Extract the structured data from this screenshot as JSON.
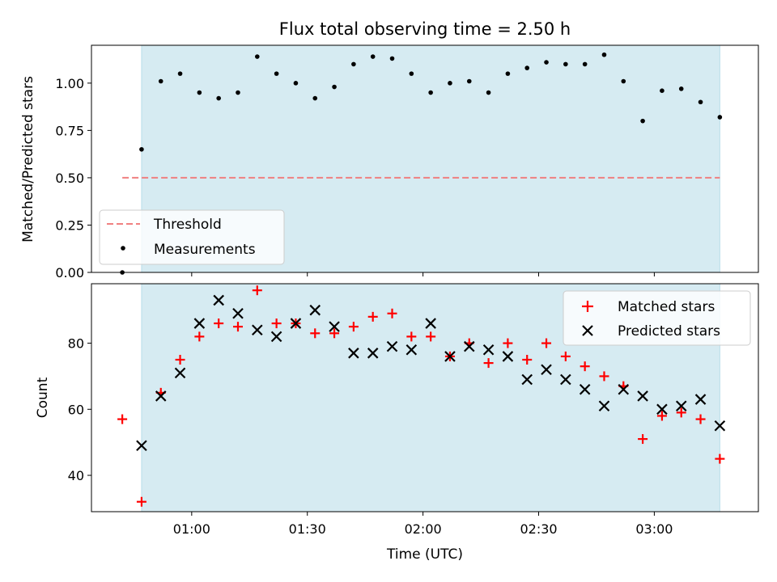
{
  "chart_data": [
    {
      "type": "scatter",
      "title": "Flux total observing time = 2.50 h",
      "xlabel": "",
      "ylabel": "Matched/Predicted stars",
      "xlim": [
        "00:34",
        "03:27"
      ],
      "ylim": [
        0,
        1.2
      ],
      "yticks": [
        0.0,
        0.25,
        0.5,
        0.75,
        1.0
      ],
      "ytick_labels": [
        "0.00",
        "0.25",
        "0.50",
        "0.75",
        "1.00"
      ],
      "shaded_span": [
        "00:47",
        "03:17"
      ],
      "legend_position": "lower-left",
      "grid": false,
      "threshold": {
        "name": "Threshold",
        "value": 0.5,
        "x_range": [
          "00:42",
          "03:17"
        ],
        "color": "#f08080",
        "style": "dashed"
      },
      "series": [
        {
          "name": "Measurements",
          "color": "#000000",
          "marker": "dot",
          "x": [
            "00:42",
            "00:47",
            "00:52",
            "00:57",
            "01:02",
            "01:07",
            "01:12",
            "01:17",
            "01:22",
            "01:27",
            "01:32",
            "01:37",
            "01:42",
            "01:47",
            "01:52",
            "01:57",
            "02:02",
            "02:07",
            "02:12",
            "02:17",
            "02:22",
            "02:27",
            "02:32",
            "02:37",
            "02:42",
            "02:47",
            "02:52",
            "02:57",
            "03:02",
            "03:07",
            "03:12",
            "03:17"
          ],
          "y": [
            0.0,
            0.65,
            1.01,
            1.05,
            0.95,
            0.92,
            0.95,
            1.14,
            1.05,
            1.0,
            0.92,
            0.98,
            1.1,
            1.14,
            1.13,
            1.05,
            0.95,
            1.0,
            1.01,
            0.95,
            1.05,
            1.08,
            1.11,
            1.1,
            1.1,
            1.15,
            1.01,
            0.8,
            0.96,
            0.97,
            0.9,
            0.82
          ]
        }
      ]
    },
    {
      "type": "scatter",
      "title": "",
      "xlabel": "Time (UTC)",
      "ylabel": "Count",
      "xlim": [
        "00:34",
        "03:27"
      ],
      "ylim": [
        29,
        98
      ],
      "yticks": [
        40,
        60,
        80
      ],
      "ytick_labels": [
        "40",
        "60",
        "80"
      ],
      "xticks": [
        "01:00",
        "01:30",
        "02:00",
        "02:30",
        "03:00"
      ],
      "xtick_labels": [
        "01:00",
        "01:30",
        "02:00",
        "02:30",
        "03:00"
      ],
      "shaded_span": [
        "00:47",
        "03:17"
      ],
      "legend_position": "top-right",
      "grid": false,
      "series": [
        {
          "name": "Matched stars",
          "color": "#ff0000",
          "marker": "plus",
          "x": [
            "00:42",
            "00:47",
            "00:52",
            "00:57",
            "01:02",
            "01:07",
            "01:12",
            "01:17",
            "01:22",
            "01:27",
            "01:32",
            "01:37",
            "01:42",
            "01:47",
            "01:52",
            "01:57",
            "02:02",
            "02:07",
            "02:12",
            "02:17",
            "02:22",
            "02:27",
            "02:32",
            "02:37",
            "02:42",
            "02:47",
            "02:52",
            "02:57",
            "03:02",
            "03:07",
            "03:12",
            "03:17"
          ],
          "y": [
            57,
            32,
            65,
            75,
            82,
            86,
            85,
            96,
            86,
            86,
            83,
            83,
            85,
            88,
            89,
            82,
            82,
            76,
            80,
            74,
            80,
            75,
            80,
            76,
            73,
            70,
            67,
            51,
            58,
            59,
            57,
            45
          ]
        },
        {
          "name": "Predicted stars",
          "color": "#000000",
          "marker": "x",
          "x": [
            "00:47",
            "00:52",
            "00:57",
            "01:02",
            "01:07",
            "01:12",
            "01:17",
            "01:22",
            "01:27",
            "01:32",
            "01:37",
            "01:42",
            "01:47",
            "01:52",
            "01:57",
            "02:02",
            "02:07",
            "02:12",
            "02:17",
            "02:22",
            "02:27",
            "02:32",
            "02:37",
            "02:42",
            "02:47",
            "02:52",
            "02:57",
            "03:02",
            "03:07",
            "03:12",
            "03:17"
          ],
          "y": [
            49,
            64,
            71,
            86,
            93,
            89,
            84,
            82,
            86,
            90,
            85,
            77,
            77,
            79,
            78,
            86,
            76,
            79,
            78,
            76,
            69,
            72,
            69,
            66,
            61,
            66,
            64,
            60,
            61,
            63,
            55
          ]
        }
      ]
    }
  ]
}
